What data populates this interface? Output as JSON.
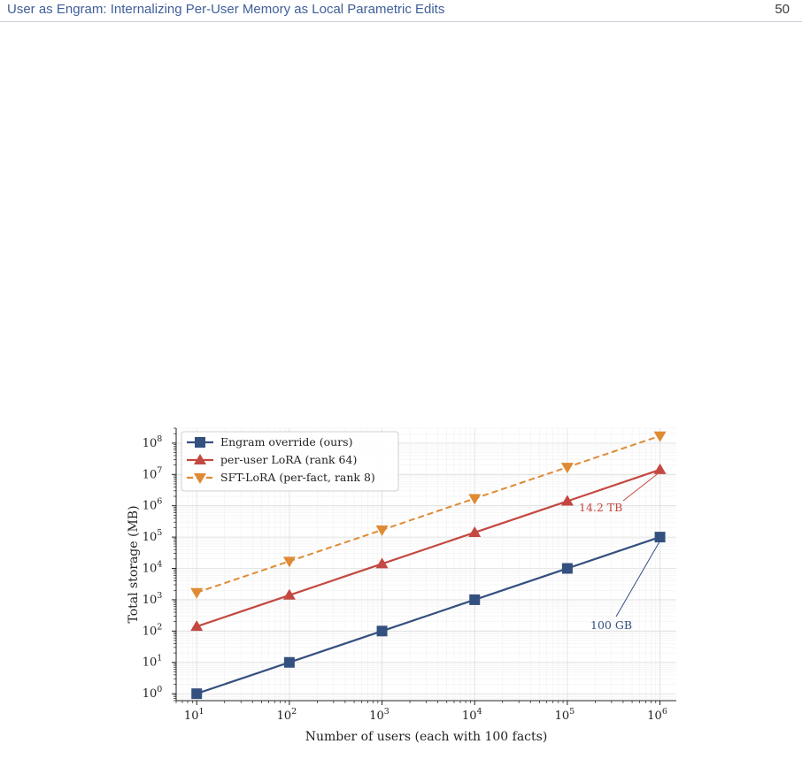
{
  "header": {
    "title": "User as Engram: Internalizing Per-User Memory as Local Parametric Edits",
    "page_number": "50"
  },
  "chart_data": {
    "type": "line",
    "xlabel": "Number of users (each with 100 facts)",
    "ylabel": "Total storage (MB)",
    "xscale": "log",
    "yscale": "log",
    "x": [
      10,
      100,
      1000,
      10000,
      100000,
      1000000
    ],
    "xlim": [
      6,
      1500000
    ],
    "ylim": [
      0.6,
      300000000
    ],
    "x_ticks": [
      {
        "base": "10",
        "exp": "1",
        "v": 10
      },
      {
        "base": "10",
        "exp": "2",
        "v": 100
      },
      {
        "base": "10",
        "exp": "3",
        "v": 1000
      },
      {
        "base": "10",
        "exp": "4",
        "v": 10000
      },
      {
        "base": "10",
        "exp": "5",
        "v": 100000
      },
      {
        "base": "10",
        "exp": "6",
        "v": 1000000
      }
    ],
    "y_ticks": [
      {
        "base": "10",
        "exp": "0",
        "v": 1
      },
      {
        "base": "10",
        "exp": "1",
        "v": 10
      },
      {
        "base": "10",
        "exp": "2",
        "v": 100
      },
      {
        "base": "10",
        "exp": "3",
        "v": 1000
      },
      {
        "base": "10",
        "exp": "4",
        "v": 10000
      },
      {
        "base": "10",
        "exp": "5",
        "v": 100000
      },
      {
        "base": "10",
        "exp": "6",
        "v": 1000000
      },
      {
        "base": "10",
        "exp": "7",
        "v": 10000000
      },
      {
        "base": "10",
        "exp": "8",
        "v": 100000000
      }
    ],
    "grid": true,
    "legend_position": "top-left",
    "series": [
      {
        "name": "Engram override (ours)",
        "values": [
          1,
          10,
          100,
          1000,
          10000,
          100000
        ],
        "color": "#34507f",
        "marker": "square",
        "dash": "solid"
      },
      {
        "name": "per-user LoRA (rank 64)",
        "values": [
          140,
          1400,
          14000,
          140000,
          1400000,
          14200000
        ],
        "color": "#c44841",
        "marker": "triangle-up",
        "dash": "solid"
      },
      {
        "name": "SFT-LoRA (per-fact, rank 8)",
        "values": [
          1700,
          17000,
          170000,
          1700000,
          17000000,
          170000000
        ],
        "color": "#df8b35",
        "marker": "triangle-down",
        "dash": "dashed"
      }
    ],
    "annotations": [
      {
        "text": "14.2 TB",
        "x": 1000000,
        "y": 14200000,
        "color": "#c44841"
      },
      {
        "text": "100 GB",
        "x": 1000000,
        "y": 100000,
        "color": "#34507f"
      }
    ]
  }
}
